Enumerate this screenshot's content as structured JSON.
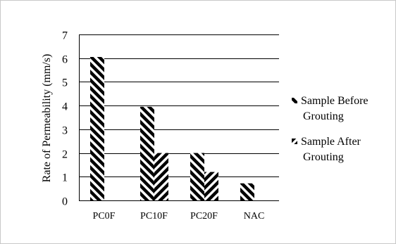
{
  "chart_data": {
    "type": "bar",
    "title": "",
    "xlabel": "",
    "ylabel": "Rate of Permeability (mm/s)",
    "ylim": [
      0,
      7
    ],
    "yticks": [
      0,
      1,
      2,
      3,
      4,
      5,
      6,
      7
    ],
    "grid": true,
    "legend_position": "right",
    "categories": [
      "PC0F",
      "PC10F",
      "PC20F",
      "NAC"
    ],
    "series": [
      {
        "name": "Sample Before Grouting",
        "legend_lines": [
          "Sample Before",
          "Grouting"
        ],
        "pattern": "dark-diagonal-stripes",
        "color": "#000000",
        "values": [
          6.05,
          3.95,
          2.0,
          0.72
        ]
      },
      {
        "name": "Sample After Grouting",
        "legend_lines": [
          "Sample After",
          "Grouting"
        ],
        "pattern": "dark-reverse-diagonal-stripes",
        "color": "#000000",
        "values": [
          0,
          2.0,
          1.2,
          0
        ]
      }
    ]
  }
}
